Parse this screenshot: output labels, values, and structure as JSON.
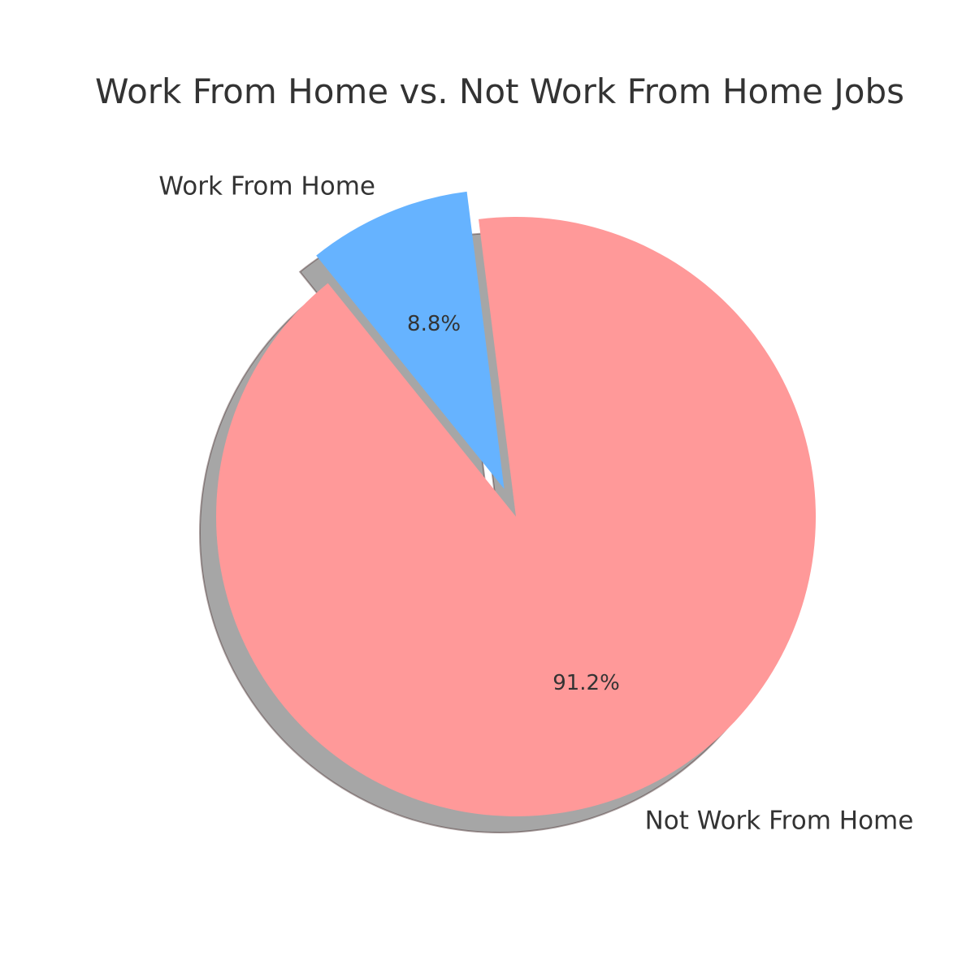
{
  "chart_data": {
    "type": "pie",
    "title": "Work From Home vs. Not Work From Home Jobs",
    "slices": [
      {
        "label": "Not Work From Home",
        "value": 91.2,
        "pct_label": "91.2%",
        "color": "#ff9999",
        "exploded": false
      },
      {
        "label": "Work From Home",
        "value": 8.8,
        "pct_label": "8.8%",
        "color": "#66b3ff",
        "exploded": true
      }
    ],
    "shadow": true,
    "legend": "none"
  }
}
